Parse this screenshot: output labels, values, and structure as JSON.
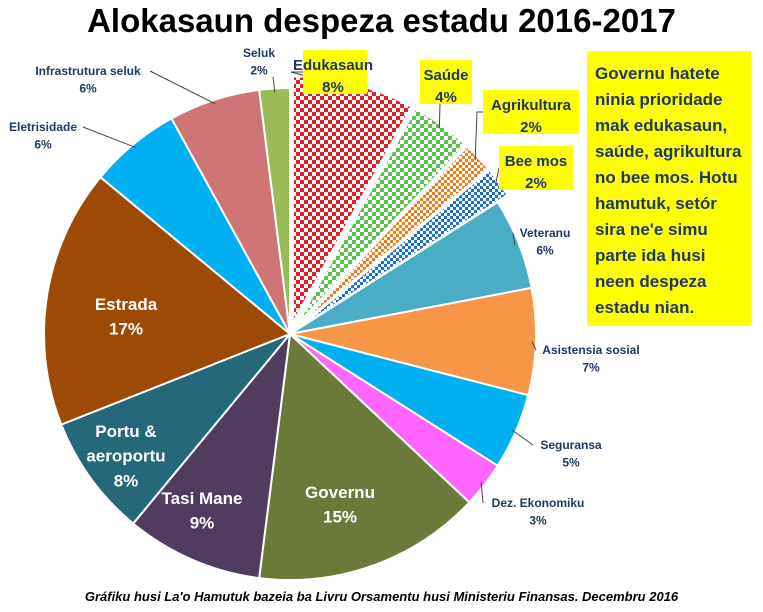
{
  "chart_data": {
    "type": "pie",
    "title": "Alokasaun despeza estadu 2016-2017",
    "slices": [
      {
        "name": "Edukasaun",
        "value": 8,
        "label": "8%",
        "color": "#e0202a",
        "pattern": "checker",
        "highlight": true
      },
      {
        "name": "Saúde",
        "value": 4,
        "label": "4%",
        "color": "#5cc24f",
        "pattern": "checker",
        "highlight": true
      },
      {
        "name": "Agrikultura",
        "value": 2,
        "label": "2%",
        "color": "#e47f22",
        "pattern": "checker",
        "highlight": true
      },
      {
        "name": "Bee mos",
        "value": 2,
        "label": "2%",
        "color": "#1f6fc8",
        "pattern": "checker",
        "highlight": true
      },
      {
        "name": "Veteranu",
        "value": 6,
        "label": "6%",
        "color": "#4bacc6",
        "pattern": "solid"
      },
      {
        "name": "Asistensia sosial",
        "value": 7,
        "label": "7%",
        "color": "#f79646",
        "pattern": "solid"
      },
      {
        "name": "Seguransa",
        "value": 5,
        "label": "5%",
        "color": "#00b0f0",
        "pattern": "solid"
      },
      {
        "name": "Dez. Ekonomiku",
        "value": 3,
        "label": "3%",
        "color": "#ff66ff",
        "pattern": "solid"
      },
      {
        "name": "Governu",
        "value": 15,
        "label": "15%",
        "color": "#6b7a38",
        "pattern": "solid"
      },
      {
        "name": "Tasi Mane",
        "value": 9,
        "label": "9%",
        "color": "#4f3c5e",
        "pattern": "solid"
      },
      {
        "name": "Portu & aeroportu",
        "value": 8,
        "label": "8%",
        "color": "#25687a",
        "pattern": "solid"
      },
      {
        "name": "Estrada",
        "value": 17,
        "label": "17%",
        "color": "#9c4a06",
        "pattern": "solid"
      },
      {
        "name": "Eletrisidade",
        "value": 6,
        "label": "6%",
        "color": "#00b0f0",
        "pattern": "solid"
      },
      {
        "name": "Infrastrutura seluk",
        "value": 6,
        "label": "6%",
        "color": "#d07575",
        "pattern": "solid"
      },
      {
        "name": "Seluk",
        "value": 2,
        "label": "2%",
        "color": "#9bbb59",
        "pattern": "solid"
      }
    ]
  },
  "note": "Governu hatete ninia prioridade mak edukasaun, saúde, agrikultura no bee mos. Hotu hamutuk, setór sira ne'e simu parte ida husi neen despeza estadu nian.",
  "source": "Gráfiku husi La'o Hamutuk bazeia ba Livru Orsamentu husi Ministeriu Finansas. Decembru 2016"
}
